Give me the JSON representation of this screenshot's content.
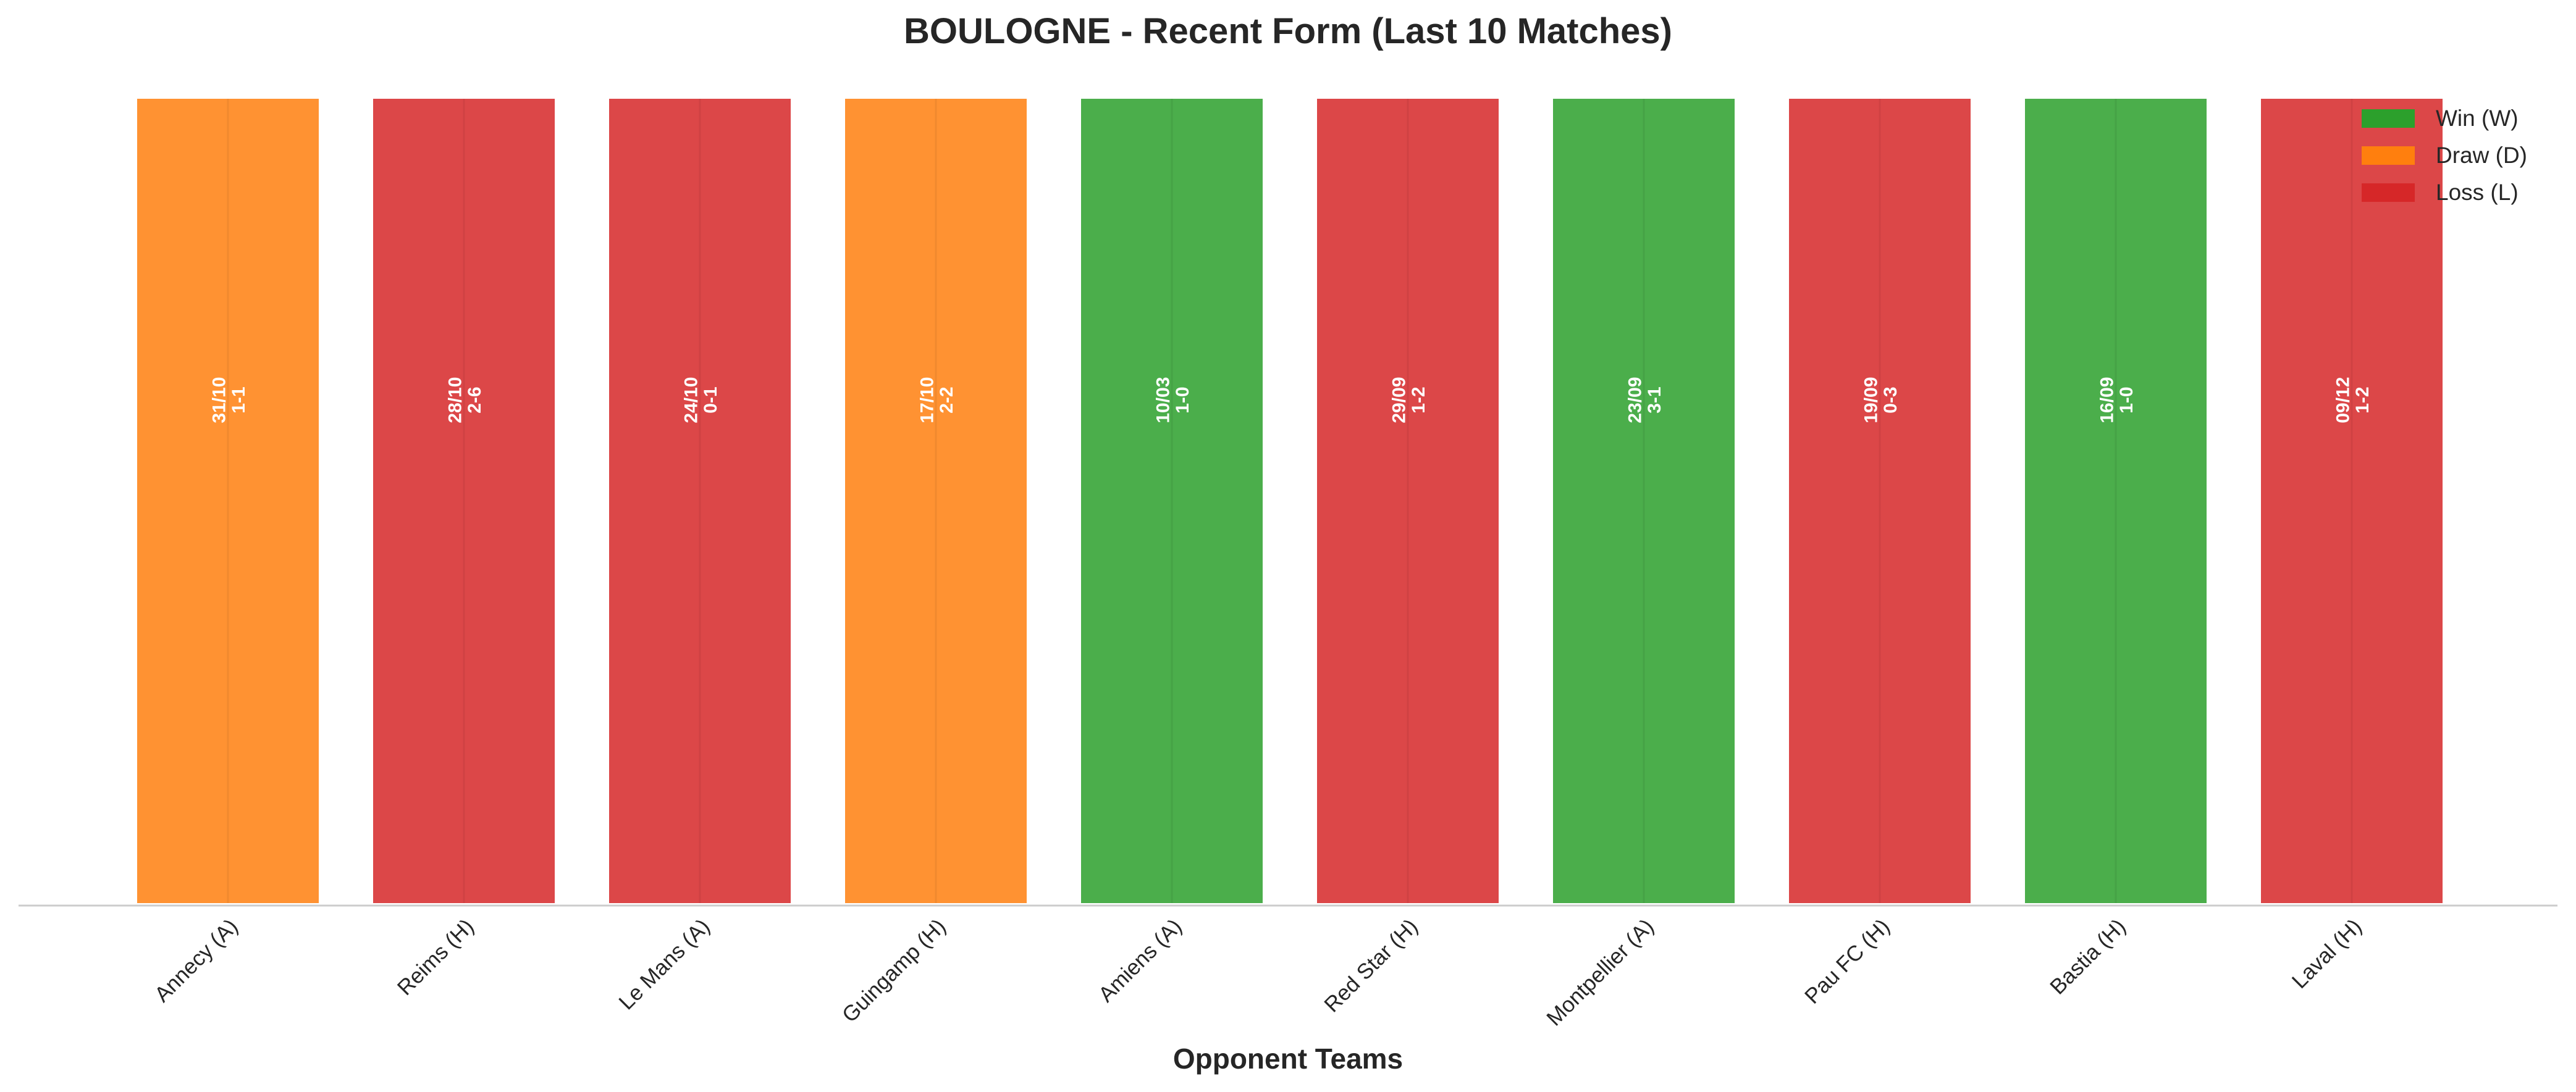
{
  "chart_data": {
    "type": "bar",
    "title": "BOULOGNE - Recent Form (Last 10 Matches)",
    "xlabel": "Opponent Teams",
    "ylabel": "",
    "categories": [
      "Annecy (A)",
      "Reims (H)",
      "Le Mans (A)",
      "Guingamp (H)",
      "Amiens (A)",
      "Red Star (H)",
      "Montpellier (A)",
      "Pau FC (H)",
      "Bastia (H)",
      "Laval (H)"
    ],
    "values": [
      1,
      1,
      1,
      1,
      1,
      1,
      1,
      1,
      1,
      1
    ],
    "results": [
      "D",
      "L",
      "L",
      "D",
      "W",
      "L",
      "W",
      "L",
      "W",
      "L"
    ],
    "dates": [
      "31/10",
      "28/10",
      "24/10",
      "17/10",
      "10/03",
      "29/09",
      "23/09",
      "19/09",
      "16/09",
      "09/12"
    ],
    "scores": [
      "1-1",
      "2-6",
      "0-1",
      "2-2",
      "1-0",
      "1-2",
      "3-1",
      "0-3",
      "1-0",
      "1-2"
    ],
    "ylim": [
      0,
      1
    ],
    "grid": false,
    "legend": {
      "placement": "top-right",
      "entries": [
        {
          "key": "W",
          "label": "Win (W)",
          "color": "#2ca02c"
        },
        {
          "key": "D",
          "label": "Draw (D)",
          "color": "#ff7f0e"
        },
        {
          "key": "L",
          "label": "Loss (L)",
          "color": "#d62728"
        }
      ]
    },
    "colors": {
      "W": "#2ca02c",
      "D": "#ff7f0e",
      "L": "#d62728"
    }
  }
}
